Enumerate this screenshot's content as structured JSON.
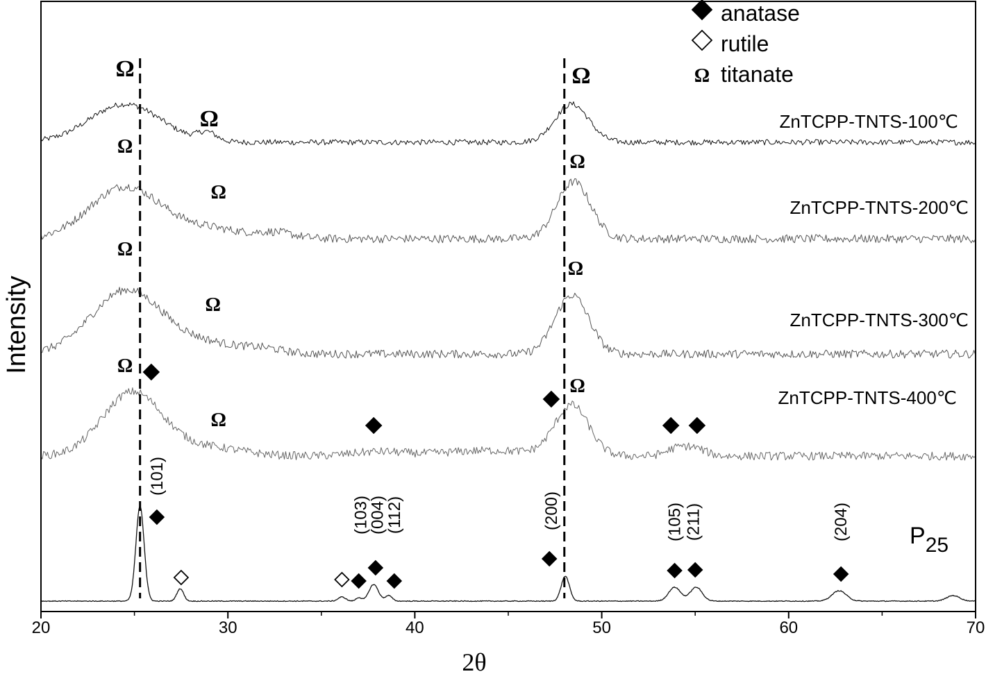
{
  "chart_data": {
    "type": "line",
    "xlabel": "2θ",
    "ylabel": "Intensity",
    "xlim": [
      20,
      70
    ],
    "xticks": [
      20,
      30,
      40,
      50,
      60,
      70
    ],
    "grid": false,
    "legend_position": "top-right",
    "legend": [
      {
        "symbol": "filled-diamond",
        "label": "anatase"
      },
      {
        "symbol": "open-diamond",
        "label": "rutile"
      },
      {
        "symbol": "omega",
        "label": "titanate"
      }
    ],
    "omega_symbol": "Ω",
    "reference_lines_x": [
      25.3,
      48.0
    ],
    "series": [
      {
        "name": "ZnTCPP-TNTS-100℃",
        "color": "#111111",
        "noise": 4,
        "peaks": [
          [
            24.5,
            1.9,
            55
          ],
          [
            28.9,
            0.5,
            12
          ],
          [
            48.4,
            0.9,
            55
          ]
        ]
      },
      {
        "name": "ZnTCPP-TNTS-200℃",
        "color": "#555555",
        "noise": 6,
        "peaks": [
          [
            24.5,
            1.9,
            75
          ],
          [
            29.0,
            1.8,
            14
          ],
          [
            32.6,
            1.0,
            8
          ],
          [
            48.5,
            0.9,
            82
          ]
        ]
      },
      {
        "name": "ZnTCPP-TNTS-300℃",
        "color": "#555555",
        "noise": 6,
        "peaks": [
          [
            24.6,
            1.9,
            92
          ],
          [
            29.0,
            1.8,
            14
          ],
          [
            32.0,
            1.0,
            6
          ],
          [
            48.4,
            0.9,
            85
          ]
        ]
      },
      {
        "name": "ZnTCPP-TNTS-400℃",
        "color": "#666666",
        "noise": 6,
        "peaks": [
          [
            24.9,
            1.6,
            92
          ],
          [
            29.0,
            1.8,
            12
          ],
          [
            38.0,
            1.4,
            6
          ],
          [
            44.0,
            2.5,
            8
          ],
          [
            48.4,
            0.9,
            72
          ],
          [
            54.0,
            0.6,
            10
          ],
          [
            55.0,
            0.6,
            10
          ]
        ]
      },
      {
        "name": "P25",
        "color": "#111111",
        "noise": 0.6,
        "peaks": [
          [
            25.3,
            0.22,
            137
          ],
          [
            27.45,
            0.18,
            18
          ],
          [
            36.1,
            0.2,
            6
          ],
          [
            37.0,
            0.15,
            5
          ],
          [
            37.8,
            0.25,
            24
          ],
          [
            38.6,
            0.18,
            8
          ],
          [
            48.05,
            0.22,
            36
          ],
          [
            53.9,
            0.32,
            20
          ],
          [
            55.05,
            0.32,
            20
          ],
          [
            62.7,
            0.38,
            15
          ],
          [
            68.8,
            0.35,
            8
          ]
        ]
      }
    ],
    "series_labels": [
      "ZnTCPP-TNTS-100℃",
      "ZnTCPP-TNTS-200℃",
      "ZnTCPP-TNTS-300℃",
      "ZnTCPP-TNTS-400℃"
    ],
    "p25_label": {
      "main": "P",
      "sub": "25"
    },
    "miller_indices": [
      {
        "x": 26.2,
        "text": "(101)"
      },
      {
        "x": 37.1,
        "text": "(103)"
      },
      {
        "x": 38.0,
        "text": "(004)"
      },
      {
        "x": 38.9,
        "text": "(112)"
      },
      {
        "x": 47.3,
        "text": "(200)"
      },
      {
        "x": 53.9,
        "text": "(105)"
      },
      {
        "x": 54.9,
        "text": "(211)"
      },
      {
        "x": 62.8,
        "text": "(204)"
      }
    ],
    "p25_markers": [
      {
        "x": 26.2,
        "symbol": "anatase"
      },
      {
        "x": 27.5,
        "symbol": "rutile"
      },
      {
        "x": 36.1,
        "symbol": "rutile"
      },
      {
        "x": 37.0,
        "symbol": "anatase"
      },
      {
        "x": 37.9,
        "symbol": "anatase"
      },
      {
        "x": 38.9,
        "symbol": "anatase"
      },
      {
        "x": 47.2,
        "symbol": "anatase"
      },
      {
        "x": 53.9,
        "symbol": "anatase"
      },
      {
        "x": 55.0,
        "symbol": "anatase"
      },
      {
        "x": 62.8,
        "symbol": "anatase"
      }
    ],
    "s400_markers": [
      {
        "x": 25.9,
        "symbol": "anatase"
      },
      {
        "x": 37.8,
        "symbol": "anatase"
      },
      {
        "x": 47.3,
        "symbol": "anatase"
      },
      {
        "x": 53.7,
        "symbol": "anatase"
      },
      {
        "x": 55.1,
        "symbol": "anatase"
      }
    ],
    "titanate_markers": [
      {
        "series": 0,
        "x": 24.5
      },
      {
        "series": 0,
        "x": 29.0
      },
      {
        "series": 0,
        "x": 48.9
      },
      {
        "series": 1,
        "x": 24.5
      },
      {
        "series": 1,
        "x": 29.5
      },
      {
        "series": 1,
        "x": 48.7
      },
      {
        "series": 2,
        "x": 24.5
      },
      {
        "series": 2,
        "x": 29.2
      },
      {
        "series": 2,
        "x": 48.6
      },
      {
        "series": 3,
        "x": 24.5
      },
      {
        "series": 3,
        "x": 29.5
      },
      {
        "series": 3,
        "x": 48.7
      }
    ]
  }
}
